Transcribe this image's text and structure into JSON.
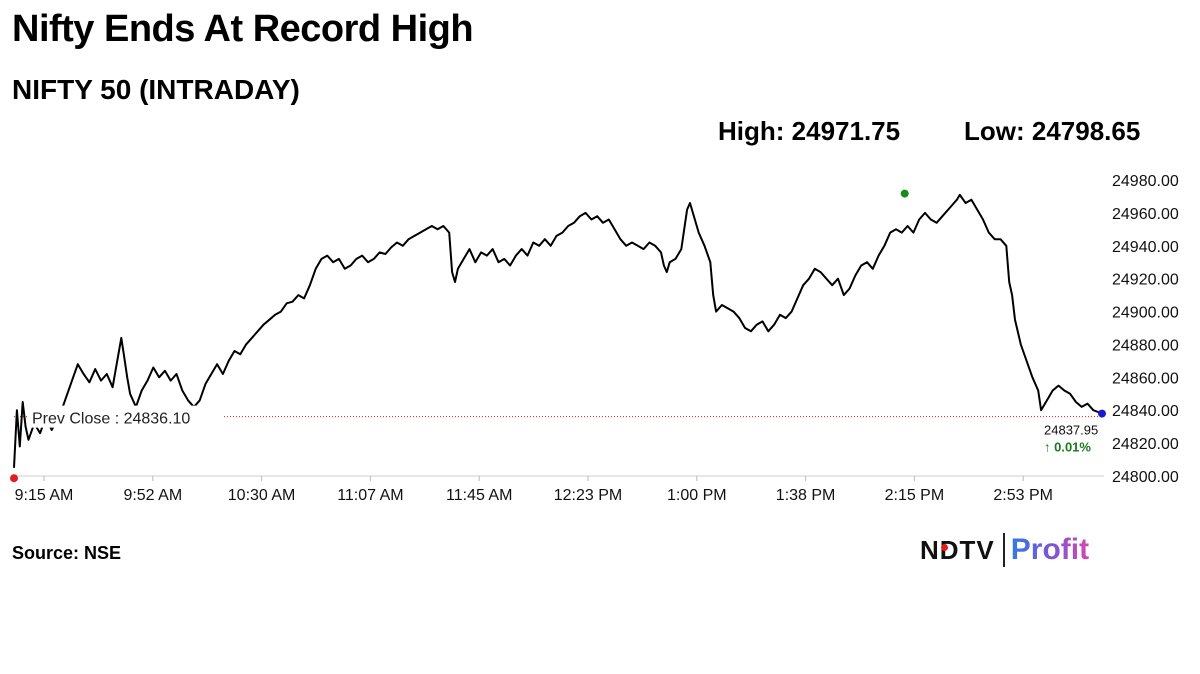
{
  "title": "Nifty Ends At Record High",
  "subtitle": "NIFTY 50 (INTRADAY)",
  "stats": {
    "high": "High: 24971.75",
    "low": "Low: 24798.65"
  },
  "source": "Source: NSE",
  "logo": {
    "part1": "NDTV",
    "part2": "Profit"
  },
  "colors": {
    "line": "#000000",
    "prev_close": "#cc2222",
    "low_marker": "#e02020",
    "high_marker": "#1a8a1a",
    "last_marker": "#1a1acc",
    "change": "#1a7a1a"
  },
  "chart_data": {
    "type": "line",
    "title": "NIFTY 50 (INTRADAY)",
    "x_ticks": [
      "9:15 AM",
      "9:52 AM",
      "10:30 AM",
      "11:07 AM",
      "11:45 AM",
      "12:23 PM",
      "1:00 PM",
      "1:38 PM",
      "2:15 PM",
      "2:53 PM"
    ],
    "y_ticks": [
      "24980.00",
      "24960.00",
      "24940.00",
      "24920.00",
      "24900.00",
      "24880.00",
      "24860.00",
      "24840.00",
      "24820.00",
      "24800.00"
    ],
    "ylim": [
      24800,
      24980
    ],
    "x_unit": "minutes after 9:15 AM",
    "xlim": [
      0,
      375
    ],
    "prev_close": {
      "label": "Prev Close : 24836.10",
      "value": 24836.1
    },
    "last": {
      "label": "24837.95",
      "value": 24837.95,
      "change": "↑ 0.01%"
    },
    "high_point": {
      "x": 307,
      "value": 24971.75
    },
    "low_point": {
      "x": 0,
      "value": 24798.65
    },
    "series": [
      {
        "name": "NIFTY 50",
        "points": [
          [
            0,
            24805
          ],
          [
            1,
            24840
          ],
          [
            2,
            24818
          ],
          [
            3,
            24845
          ],
          [
            4,
            24830
          ],
          [
            5,
            24822
          ],
          [
            7,
            24832
          ],
          [
            9,
            24826
          ],
          [
            11,
            24836
          ],
          [
            13,
            24828
          ],
          [
            16,
            24838
          ],
          [
            18,
            24848
          ],
          [
            20,
            24858
          ],
          [
            22,
            24868
          ],
          [
            24,
            24862
          ],
          [
            26,
            24857
          ],
          [
            28,
            24865
          ],
          [
            30,
            24858
          ],
          [
            32,
            24862
          ],
          [
            34,
            24854
          ],
          [
            36,
            24874
          ],
          [
            37,
            24884
          ],
          [
            38,
            24872
          ],
          [
            39,
            24860
          ],
          [
            40,
            24850
          ],
          [
            42,
            24842
          ],
          [
            44,
            24852
          ],
          [
            46,
            24858
          ],
          [
            48,
            24866
          ],
          [
            50,
            24860
          ],
          [
            52,
            24864
          ],
          [
            54,
            24858
          ],
          [
            56,
            24862
          ],
          [
            58,
            24852
          ],
          [
            60,
            24846
          ],
          [
            62,
            24842
          ],
          [
            64,
            24846
          ],
          [
            66,
            24856
          ],
          [
            68,
            24862
          ],
          [
            70,
            24868
          ],
          [
            72,
            24862
          ],
          [
            74,
            24870
          ],
          [
            76,
            24876
          ],
          [
            78,
            24874
          ],
          [
            80,
            24880
          ],
          [
            82,
            24884
          ],
          [
            84,
            24888
          ],
          [
            86,
            24892
          ],
          [
            88,
            24895
          ],
          [
            90,
            24898
          ],
          [
            92,
            24900
          ],
          [
            94,
            24905
          ],
          [
            96,
            24906
          ],
          [
            98,
            24910
          ],
          [
            100,
            24908
          ],
          [
            102,
            24916
          ],
          [
            104,
            24926
          ],
          [
            106,
            24932
          ],
          [
            108,
            24934
          ],
          [
            110,
            24930
          ],
          [
            112,
            24932
          ],
          [
            114,
            24926
          ],
          [
            116,
            24928
          ],
          [
            118,
            24932
          ],
          [
            120,
            24934
          ],
          [
            122,
            24930
          ],
          [
            124,
            24932
          ],
          [
            126,
            24936
          ],
          [
            128,
            24935
          ],
          [
            130,
            24939
          ],
          [
            132,
            24942
          ],
          [
            134,
            24940
          ],
          [
            136,
            24944
          ],
          [
            138,
            24946
          ],
          [
            140,
            24948
          ],
          [
            142,
            24950
          ],
          [
            144,
            24952
          ],
          [
            146,
            24950
          ],
          [
            148,
            24952
          ],
          [
            150,
            24948
          ],
          [
            151,
            24924
          ],
          [
            152,
            24918
          ],
          [
            153,
            24926
          ],
          [
            155,
            24932
          ],
          [
            157,
            24938
          ],
          [
            159,
            24930
          ],
          [
            161,
            24936
          ],
          [
            163,
            24934
          ],
          [
            165,
            24938
          ],
          [
            167,
            24930
          ],
          [
            169,
            24932
          ],
          [
            171,
            24928
          ],
          [
            173,
            24934
          ],
          [
            175,
            24938
          ],
          [
            177,
            24934
          ],
          [
            179,
            24942
          ],
          [
            181,
            24940
          ],
          [
            183,
            24944
          ],
          [
            185,
            24940
          ],
          [
            187,
            24946
          ],
          [
            189,
            24948
          ],
          [
            191,
            24952
          ],
          [
            193,
            24954
          ],
          [
            195,
            24958
          ],
          [
            197,
            24960
          ],
          [
            199,
            24956
          ],
          [
            201,
            24958
          ],
          [
            203,
            24954
          ],
          [
            205,
            24956
          ],
          [
            207,
            24950
          ],
          [
            209,
            24944
          ],
          [
            211,
            24940
          ],
          [
            213,
            24942
          ],
          [
            215,
            24940
          ],
          [
            217,
            24938
          ],
          [
            219,
            24942
          ],
          [
            221,
            24940
          ],
          [
            223,
            24936
          ],
          [
            224,
            24928
          ],
          [
            225,
            24924
          ],
          [
            226,
            24930
          ],
          [
            228,
            24932
          ],
          [
            230,
            24938
          ],
          [
            231,
            24950
          ],
          [
            232,
            24962
          ],
          [
            233,
            24966
          ],
          [
            234,
            24960
          ],
          [
            236,
            24948
          ],
          [
            238,
            24940
          ],
          [
            240,
            24930
          ],
          [
            241,
            24910
          ],
          [
            242,
            24900
          ],
          [
            244,
            24904
          ],
          [
            246,
            24902
          ],
          [
            248,
            24900
          ],
          [
            250,
            24896
          ],
          [
            252,
            24890
          ],
          [
            254,
            24888
          ],
          [
            256,
            24892
          ],
          [
            258,
            24894
          ],
          [
            260,
            24888
          ],
          [
            262,
            24892
          ],
          [
            264,
            24898
          ],
          [
            266,
            24896
          ],
          [
            268,
            24900
          ],
          [
            270,
            24908
          ],
          [
            272,
            24916
          ],
          [
            274,
            24920
          ],
          [
            276,
            24926
          ],
          [
            278,
            24924
          ],
          [
            280,
            24920
          ],
          [
            282,
            24916
          ],
          [
            284,
            24920
          ],
          [
            286,
            24910
          ],
          [
            288,
            24914
          ],
          [
            290,
            24922
          ],
          [
            292,
            24928
          ],
          [
            294,
            24930
          ],
          [
            296,
            24926
          ],
          [
            298,
            24934
          ],
          [
            300,
            24940
          ],
          [
            302,
            24948
          ],
          [
            304,
            24950
          ],
          [
            306,
            24948
          ],
          [
            308,
            24952
          ],
          [
            310,
            24948
          ],
          [
            312,
            24956
          ],
          [
            314,
            24960
          ],
          [
            316,
            24956
          ],
          [
            318,
            24954
          ],
          [
            320,
            24958
          ],
          [
            322,
            24962
          ],
          [
            324,
            24966
          ],
          [
            325,
            24968
          ],
          [
            326,
            24971
          ],
          [
            328,
            24966
          ],
          [
            330,
            24968
          ],
          [
            332,
            24962
          ],
          [
            334,
            24956
          ],
          [
            336,
            24948
          ],
          [
            338,
            24944
          ],
          [
            340,
            24944
          ],
          [
            342,
            24940
          ],
          [
            343,
            24918
          ],
          [
            344,
            24910
          ],
          [
            345,
            24895
          ],
          [
            347,
            24880
          ],
          [
            349,
            24870
          ],
          [
            351,
            24860
          ],
          [
            353,
            24852
          ],
          [
            354,
            24840
          ],
          [
            356,
            24846
          ],
          [
            358,
            24852
          ],
          [
            360,
            24855
          ],
          [
            362,
            24852
          ],
          [
            364,
            24850
          ],
          [
            366,
            24845
          ],
          [
            368,
            24842
          ],
          [
            370,
            24844
          ],
          [
            372,
            24840
          ],
          [
            375,
            24838
          ]
        ]
      }
    ]
  }
}
